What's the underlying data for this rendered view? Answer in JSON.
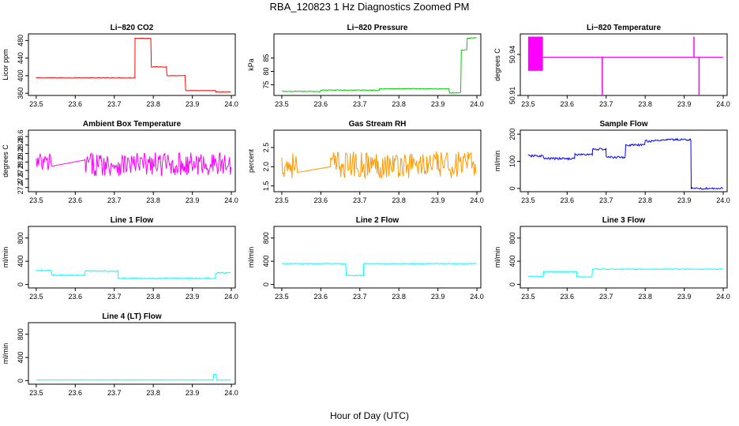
{
  "figure": {
    "title": "RBA_120823  1 Hz Diagnostics Zoomed PM",
    "xlabel": "Hour of Day (UTC)"
  },
  "chart_data": [
    {
      "type": "line",
      "title": "Li−820 CO2",
      "ylabel": "Licor ppm",
      "color": "#ff0000",
      "xlim": [
        23.48,
        24.01
      ],
      "ylim": [
        355,
        495
      ],
      "xticks": [
        "23.5",
        "23.6",
        "23.7",
        "23.8",
        "23.9",
        "24.0"
      ],
      "yticks": [
        "360",
        "400",
        "440",
        "480"
      ],
      "noise": 0.6,
      "segments": [
        [
          23.5,
          23.753,
          395
        ],
        [
          23.753,
          23.795,
          485
        ],
        [
          23.795,
          23.835,
          420
        ],
        [
          23.835,
          23.883,
          400
        ],
        [
          23.883,
          23.96,
          366
        ],
        [
          23.96,
          24.0,
          363
        ]
      ]
    },
    {
      "type": "line",
      "title": "Li−820 Pressure",
      "ylabel": "kPa",
      "color": "#00cc00",
      "xlim": [
        23.48,
        24.01
      ],
      "ylim": [
        71,
        94
      ],
      "xticks": [
        "23.5",
        "23.6",
        "23.7",
        "23.8",
        "23.9",
        "24.0"
      ],
      "yticks": [
        "75",
        "80",
        "85"
      ],
      "noise": 0.15,
      "segments": [
        [
          23.5,
          23.6,
          72.5
        ],
        [
          23.6,
          23.75,
          73
        ],
        [
          23.75,
          23.93,
          73.5
        ],
        [
          23.93,
          23.96,
          72
        ],
        [
          23.96,
          23.975,
          88
        ],
        [
          23.975,
          24.0,
          92.5
        ]
      ]
    },
    {
      "type": "line",
      "title": "Li−820 Temperature",
      "ylabel": "degrees C",
      "color": "#ff00ff",
      "xlim": [
        23.48,
        24.01
      ],
      "ylim": [
        50.91,
        50.955
      ],
      "xticks": [
        "23.5",
        "23.6",
        "23.7",
        "23.8",
        "23.9",
        "24.0"
      ],
      "yticks": [
        "50.91",
        "50.94"
      ],
      "noise": 0,
      "segments": [
        [
          23.5,
          24.0,
          50.938
        ]
      ],
      "block": [
        23.5,
        23.538,
        50.928,
        50.953
      ],
      "spikes": [
        [
          23.69,
          50.91
        ],
        [
          23.925,
          50.953
        ],
        [
          23.938,
          50.91
        ]
      ]
    },
    {
      "type": "line",
      "title": "Ambient Box Temperature",
      "ylabel": "degrees C",
      "color": "#ff00ff",
      "xlim": [
        23.48,
        24.01
      ],
      "ylim": [
        27.3,
        28.75
      ],
      "xticks": [
        "23.5",
        "23.6",
        "23.7",
        "23.8",
        "23.9",
        "24.0"
      ],
      "yticks": [
        "27.4",
        "27.6",
        "27.8",
        "28.0",
        "28.2",
        "28.4",
        "28.6"
      ],
      "noise": 0.28,
      "segments": [
        [
          23.5,
          23.54,
          27.95
        ],
        [
          23.625,
          24.0,
          27.95
        ]
      ],
      "gap": [
        23.54,
        23.625,
        27.9,
        28.05
      ]
    },
    {
      "type": "line",
      "title": "Gas Stream RH",
      "ylabel": "percent",
      "color": "#ff9900",
      "xlim": [
        23.48,
        24.01
      ],
      "ylim": [
        1.35,
        2.95
      ],
      "xticks": [
        "23.5",
        "23.6",
        "23.7",
        "23.8",
        "23.9",
        "24.0"
      ],
      "yticks": [
        "1.5",
        "2.0",
        "2.5"
      ],
      "noise": 0.35,
      "segments": [
        [
          23.5,
          23.54,
          2.05
        ],
        [
          23.625,
          24.0,
          2.05
        ]
      ],
      "gap": [
        23.54,
        23.625,
        1.85,
        2.0
      ]
    },
    {
      "type": "line",
      "title": "Sample Flow",
      "ylabel": "ml/min",
      "color": "#0000ff",
      "xlim": [
        23.48,
        24.01
      ],
      "ylim": [
        -12,
        215
      ],
      "xticks": [
        "23.5",
        "23.6",
        "23.7",
        "23.8",
        "23.9",
        "24.0"
      ],
      "yticks": [
        "0",
        "100",
        "200"
      ],
      "noise": 4,
      "segments": [
        [
          23.5,
          23.54,
          120
        ],
        [
          23.54,
          23.62,
          110
        ],
        [
          23.62,
          23.665,
          125
        ],
        [
          23.665,
          23.7,
          145
        ],
        [
          23.7,
          23.75,
          115
        ],
        [
          23.75,
          23.8,
          160
        ],
        [
          23.8,
          23.84,
          175
        ],
        [
          23.84,
          23.918,
          180
        ],
        [
          23.918,
          24.0,
          0
        ]
      ]
    },
    {
      "type": "line",
      "title": "Line 1 Flow",
      "ylabel": "ml/min",
      "color": "#00ffff",
      "xlim": [
        23.48,
        24.01
      ],
      "ylim": [
        -60,
        1000
      ],
      "xticks": [
        "23.5",
        "23.6",
        "23.7",
        "23.8",
        "23.9",
        "24.0"
      ],
      "yticks": [
        "0",
        "400",
        "800"
      ],
      "noise": 10,
      "segments": [
        [
          23.5,
          23.54,
          240
        ],
        [
          23.54,
          23.625,
          160
        ],
        [
          23.625,
          23.71,
          230
        ],
        [
          23.71,
          23.96,
          105
        ],
        [
          23.96,
          24.0,
          200
        ]
      ]
    },
    {
      "type": "line",
      "title": "Line 2 Flow",
      "ylabel": "ml/min",
      "color": "#00ffff",
      "xlim": [
        23.48,
        24.01
      ],
      "ylim": [
        -60,
        1000
      ],
      "xticks": [
        "23.5",
        "23.6",
        "23.7",
        "23.8",
        "23.9",
        "24.0"
      ],
      "yticks": [
        "0",
        "400",
        "800"
      ],
      "noise": 6,
      "segments": [
        [
          23.5,
          23.665,
          360
        ],
        [
          23.665,
          23.71,
          155
        ],
        [
          23.71,
          24.0,
          360
        ]
      ]
    },
    {
      "type": "line",
      "title": "Line 3 Flow",
      "ylabel": "ml/min",
      "color": "#00ffff",
      "xlim": [
        23.48,
        24.01
      ],
      "ylim": [
        -60,
        1000
      ],
      "xticks": [
        "23.5",
        "23.6",
        "23.7",
        "23.8",
        "23.9",
        "24.0"
      ],
      "yticks": [
        "0",
        "400",
        "800"
      ],
      "noise": 6,
      "segments": [
        [
          23.5,
          23.54,
          140
        ],
        [
          23.54,
          23.625,
          220
        ],
        [
          23.625,
          23.665,
          130
        ],
        [
          23.665,
          24.0,
          265
        ]
      ]
    },
    {
      "type": "line",
      "title": "Line 4 (LT) Flow",
      "ylabel": "ml/min",
      "color": "#00ffff",
      "xlim": [
        23.48,
        24.01
      ],
      "ylim": [
        -60,
        1000
      ],
      "xticks": [
        "23.5",
        "23.6",
        "23.7",
        "23.8",
        "23.9",
        "24.0"
      ],
      "yticks": [
        "0",
        "400",
        "800"
      ],
      "noise": 3,
      "segments": [
        [
          23.5,
          23.955,
          12
        ],
        [
          23.955,
          23.962,
          110
        ],
        [
          23.962,
          24.0,
          12
        ]
      ]
    }
  ]
}
